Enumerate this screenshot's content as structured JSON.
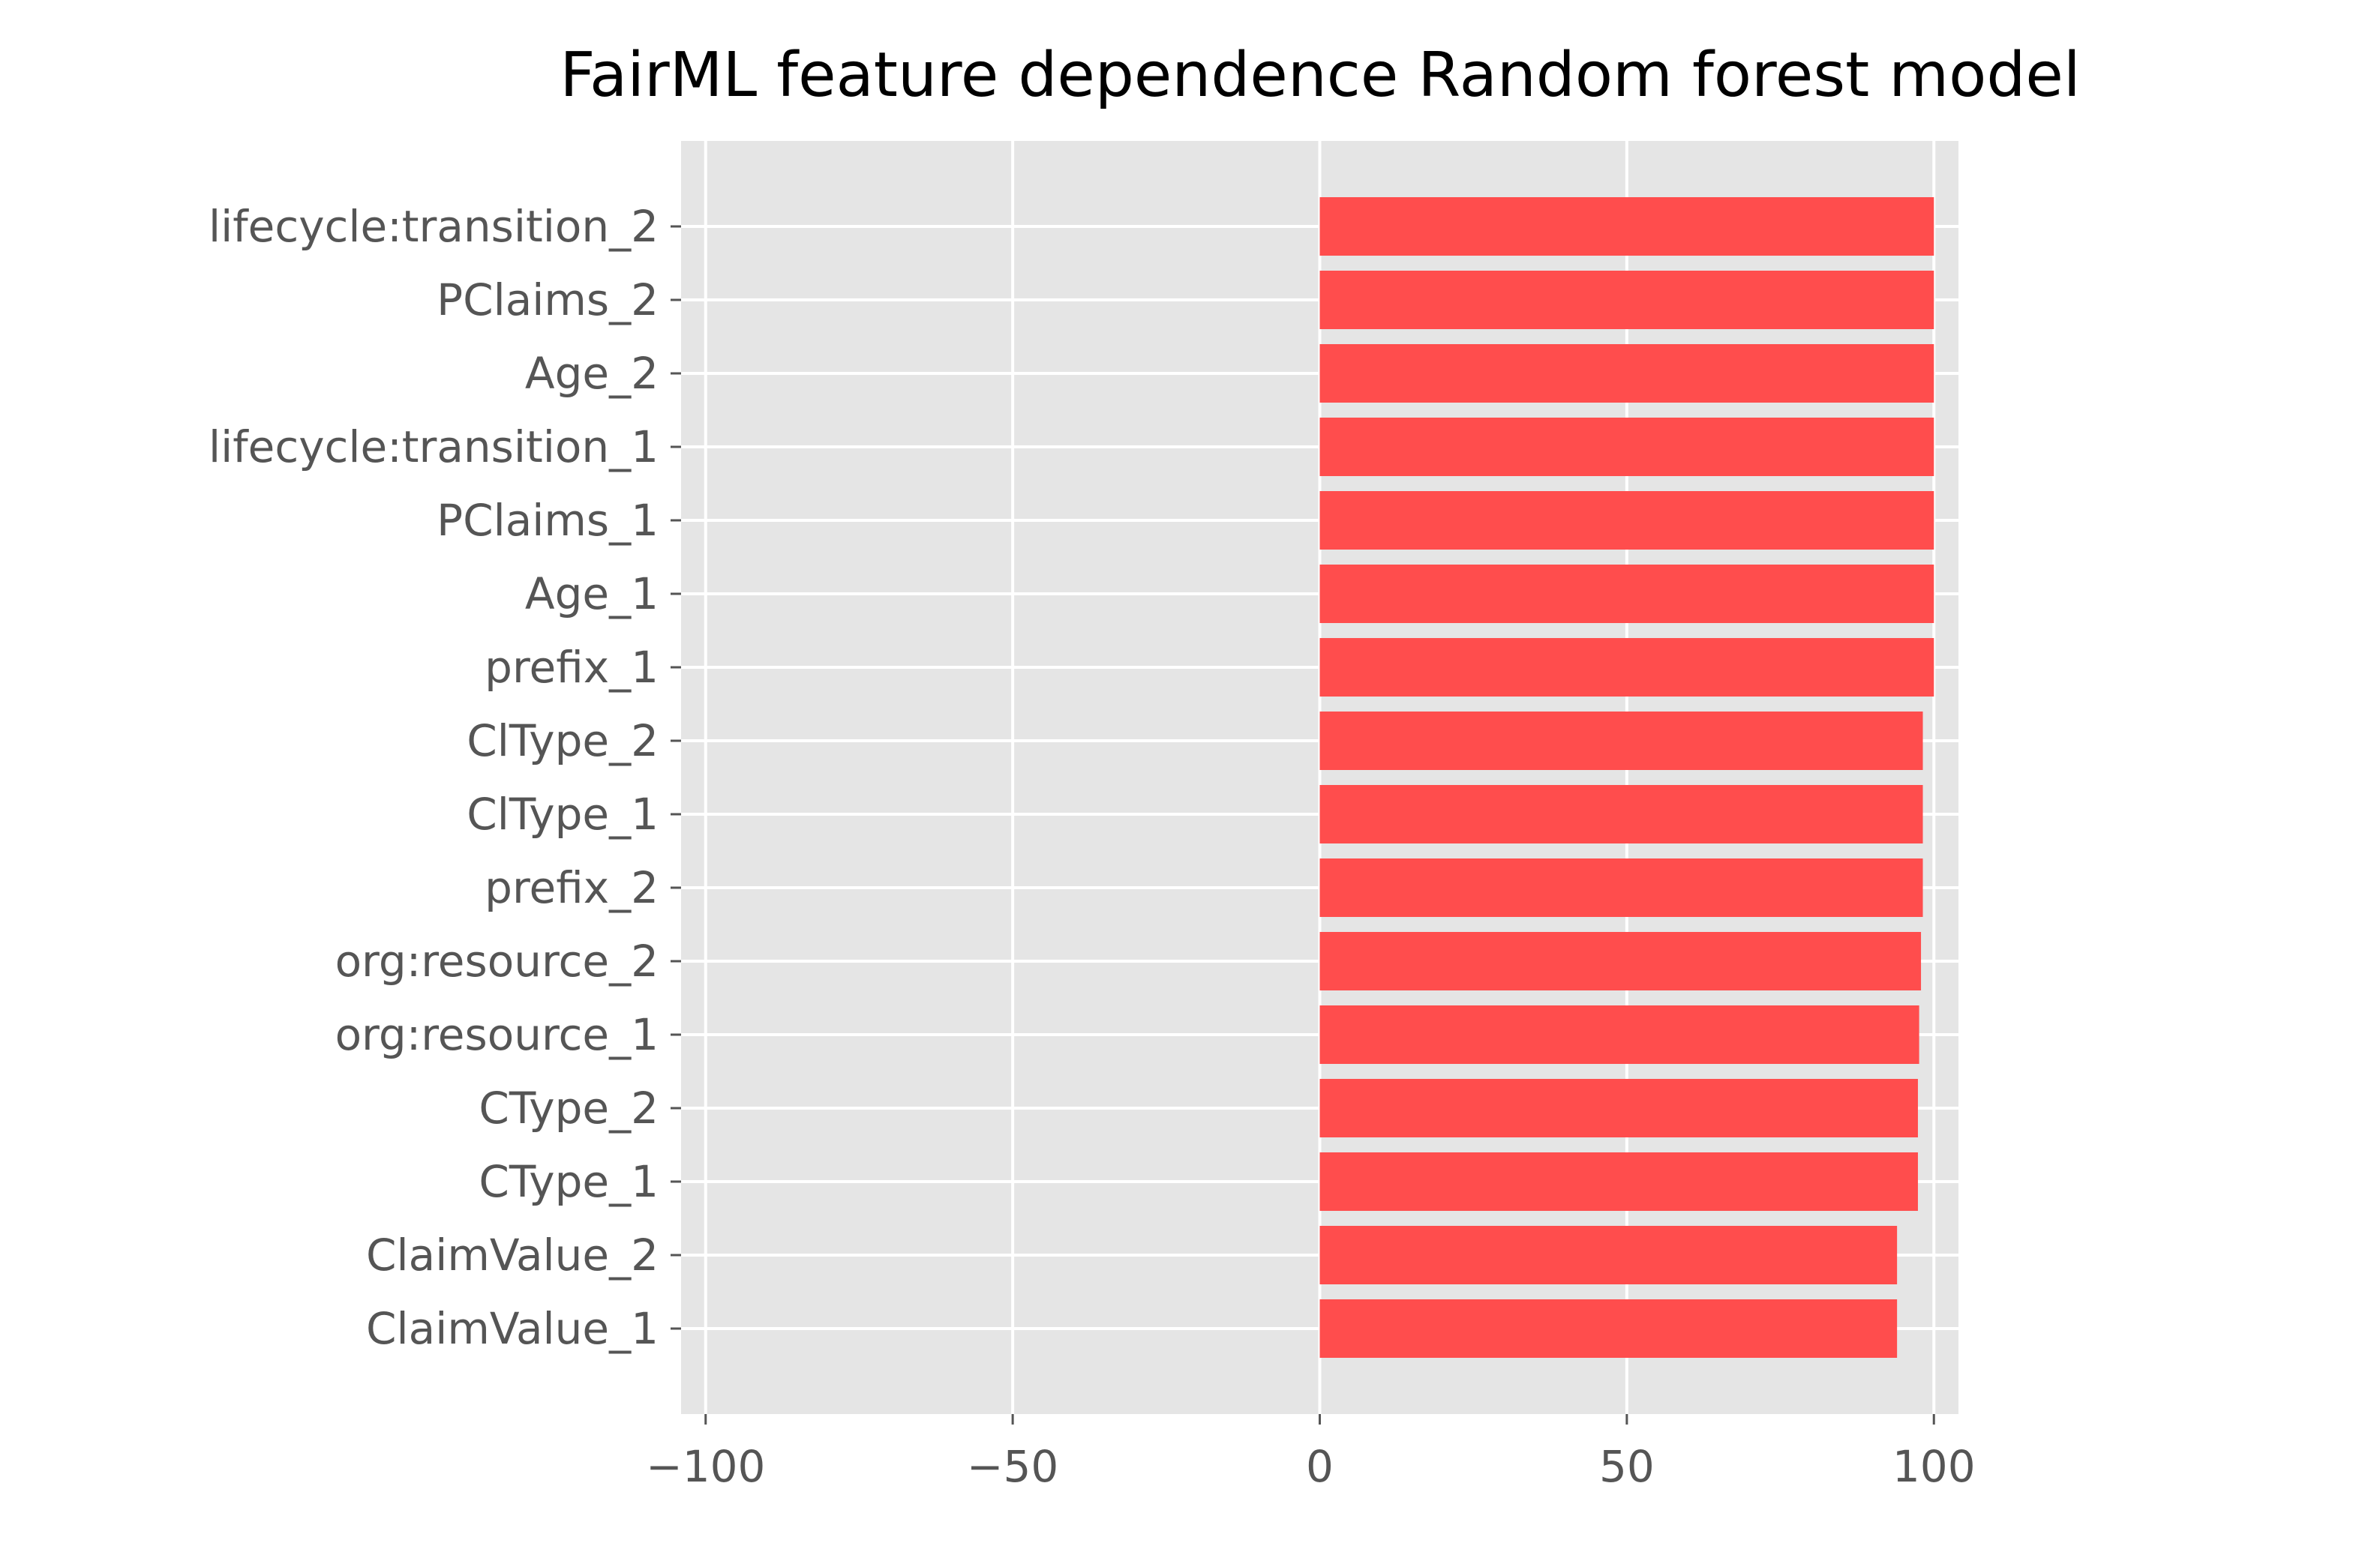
{
  "chart_data": {
    "type": "bar",
    "orientation": "horizontal",
    "title": "FairML feature dependence Random forest model",
    "xlabel": "",
    "ylabel": "",
    "categories": [
      "lifecycle:transition_2",
      "PClaims_2",
      "Age_2",
      "lifecycle:transition_1",
      "PClaims_1",
      "Age_1",
      "prefix_1",
      "ClType_2",
      "ClType_1",
      "prefix_2",
      "org:resource_2",
      "org:resource_1",
      "CType_2",
      "CType_1",
      "ClaimValue_2",
      "ClaimValue_1"
    ],
    "values": [
      100,
      100,
      100,
      100,
      100,
      100,
      100,
      98.2,
      98.2,
      98.2,
      97.9,
      97.6,
      97.4,
      97.4,
      94,
      94
    ],
    "xlim": [
      -104,
      104
    ],
    "xticks": [
      -100,
      -50,
      0,
      50,
      100
    ],
    "xtick_labels": [
      "−100",
      "−50",
      "0",
      "50",
      "100"
    ],
    "grid": true,
    "colors": {
      "bar": "#ff4d4d",
      "plot_background": "#e5e5e5",
      "grid": "#ffffff",
      "tick_label": "#555555",
      "title": "#000000"
    }
  }
}
